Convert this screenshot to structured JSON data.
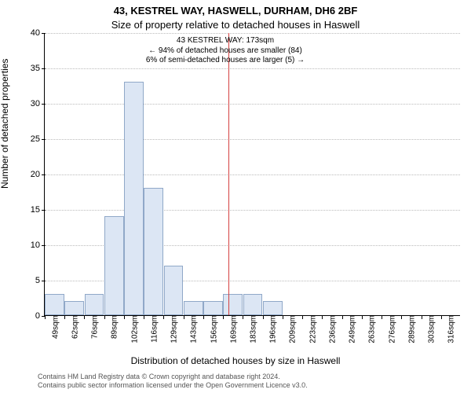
{
  "title_main": "43, KESTREL WAY, HASWELL, DURHAM, DH6 2BF",
  "title_sub": "Size of property relative to detached houses in Haswell",
  "ylabel": "Number of detached properties",
  "xlabel": "Distribution of detached houses by size in Haswell",
  "footer_line1": "Contains HM Land Registry data © Crown copyright and database right 2024.",
  "footer_line2": "Contains public sector information licensed under the Open Government Licence v3.0.",
  "chart": {
    "type": "histogram",
    "ylim": [
      0,
      40
    ],
    "yticks": [
      0,
      5,
      10,
      15,
      20,
      25,
      30,
      35,
      40
    ],
    "grid_color": "#bbbbbb",
    "background_color": "#ffffff",
    "bar_fill": "#dce6f4",
    "bar_stroke": "#90a8c8",
    "marker_line_color": "#d44040",
    "marker_x_value": 173,
    "x_tick_labels": [
      "49sqm",
      "62sqm",
      "76sqm",
      "89sqm",
      "102sqm",
      "116sqm",
      "129sqm",
      "143sqm",
      "156sqm",
      "169sqm",
      "183sqm",
      "196sqm",
      "209sqm",
      "223sqm",
      "236sqm",
      "249sqm",
      "263sqm",
      "276sqm",
      "289sqm",
      "303sqm",
      "316sqm"
    ],
    "bar_values": [
      3,
      2,
      3,
      14,
      33,
      18,
      7,
      2,
      2,
      3,
      3,
      2,
      0,
      0,
      0,
      0,
      0,
      0,
      0,
      0,
      0
    ],
    "annot_line1": "43 KESTREL WAY: 173sqm",
    "annot_line2": "← 94% of detached houses are smaller (84)",
    "annot_line3": "6% of semi-detached houses are larger (5) →",
    "title_fontsize": 13,
    "label_fontsize": 12,
    "tick_fontsize": 10
  }
}
